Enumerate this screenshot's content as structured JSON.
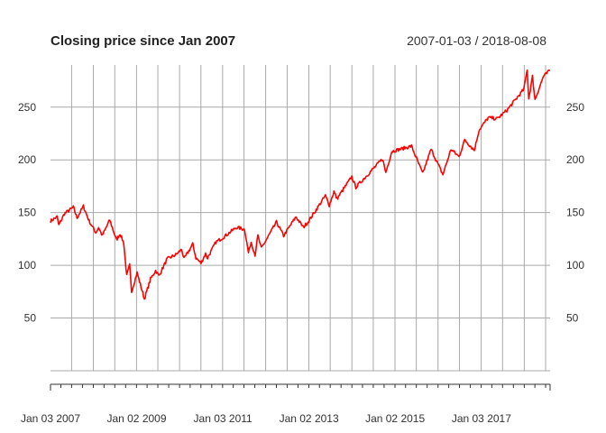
{
  "chart_data": {
    "type": "line",
    "title": "Closing price since Jan 2007",
    "subtitle": "2007-01-03 / 2018-08-08",
    "xlabel": "",
    "ylabel": "",
    "x_range": [
      "2007-01-03",
      "2018-08-08"
    ],
    "ylim": [
      0,
      290
    ],
    "y_ticks": [
      50,
      100,
      150,
      200,
      250
    ],
    "x_tick_labels": [
      "Jan 03 2007",
      "Jan 02 2009",
      "Jan 03 2011",
      "Jan 02 2013",
      "Jan 02 2015",
      "Jan 03 2017"
    ],
    "grid": true,
    "legend": "none",
    "line_color": "#ff0000",
    "grid_color": "#a9a9a9",
    "series": [
      {
        "x": [
          "2007-01-03",
          "2007-03-01",
          "2007-03-14",
          "2007-05-01",
          "2007-07-16",
          "2007-08-16",
          "2007-10-09",
          "2007-11-26",
          "2008-01-22",
          "2008-02-15",
          "2008-03-17",
          "2008-05-19",
          "2008-07-15",
          "2008-08-15",
          "2008-09-15",
          "2008-10-10",
          "2008-11-04",
          "2008-11-20",
          "2009-01-06",
          "2009-03-09",
          "2009-04-30",
          "2009-06-12",
          "2009-07-10",
          "2009-09-18",
          "2009-11-30",
          "2010-01-19",
          "2010-02-08",
          "2010-04-23",
          "2010-05-20",
          "2010-07-02",
          "2010-08-09",
          "2010-08-26",
          "2010-11-05",
          "2010-12-31",
          "2011-04-29",
          "2011-07-07",
          "2011-08-08",
          "2011-08-31",
          "2011-10-03",
          "2011-10-27",
          "2011-11-25",
          "2012-04-02",
          "2012-06-01",
          "2012-09-14",
          "2012-11-15",
          "2012-12-31",
          "2013-05-21",
          "2013-06-24",
          "2013-08-02",
          "2013-08-27",
          "2013-12-31",
          "2014-02-03",
          "2014-09-18",
          "2014-10-15",
          "2014-12-05",
          "2015-05-21",
          "2015-08-24",
          "2015-11-03",
          "2016-02-11",
          "2016-04-20",
          "2016-06-27",
          "2016-08-15",
          "2016-11-04",
          "2016-12-13",
          "2017-03-01",
          "2017-05-17",
          "2017-08-07",
          "2017-12-29",
          "2018-01-26",
          "2018-02-08",
          "2018-03-12",
          "2018-04-02",
          "2018-06-12",
          "2018-08-08"
        ],
        "y": [
          142,
          146,
          138,
          149,
          155,
          145,
          156,
          142,
          131,
          136,
          128,
          143,
          124,
          130,
          121,
          90,
          100,
          75,
          93,
          68,
          87,
          95,
          90,
          106,
          110,
          115,
          106,
          120,
          107,
          102,
          111,
          107,
          122,
          126,
          136,
          134,
          112,
          122,
          110,
          128,
          116,
          141,
          128,
          146,
          136,
          142,
          166,
          157,
          170,
          163,
          184,
          174,
          201,
          188,
          208,
          213,
          187,
          210,
          186,
          210,
          203,
          219,
          209,
          228,
          240,
          239,
          247,
          267,
          286,
          258,
          279,
          257,
          279,
          285
        ]
      }
    ]
  }
}
